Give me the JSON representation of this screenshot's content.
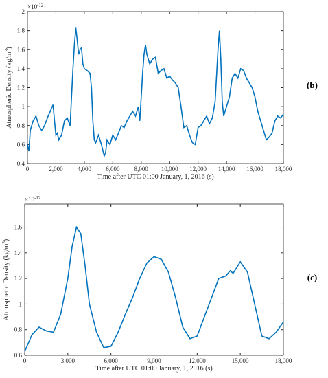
{
  "chart_data": [
    {
      "type": "line",
      "panel": "(b)",
      "xlabel": "Time after UTC 01:00 January, 1, 2016 (s)",
      "ylabel": "Atmospheric Density (kg/m",
      "ylabel_exponent": "3",
      "ylabel_close": ")",
      "multiplier": "×10",
      "multiplier_exponent": "-12",
      "xlim": [
        0,
        18000
      ],
      "ylim": [
        0.4,
        2
      ],
      "xticks": [
        0,
        {
          "value": 2000,
          "label": "2,000"
        },
        {
          "value": 4000,
          "label": "4,000"
        },
        {
          "value": 6000,
          "label": "6,000"
        },
        {
          "value": 8000,
          "label": "8,000"
        },
        {
          "value": 10000,
          "label": "10,000"
        },
        {
          "value": 12000,
          "label": "12,000"
        },
        {
          "value": 14000,
          "label": "14,000"
        },
        {
          "value": 16000,
          "label": "16,000"
        },
        {
          "value": 18000,
          "label": "18,000"
        }
      ],
      "yticks": [
        0.4,
        0.6,
        0.8,
        1,
        1.2,
        1.4,
        1.6,
        1.8,
        2
      ],
      "series": [
        {
          "color": "#0072bd",
          "x": [
            0,
            100,
            200,
            400,
            600,
            800,
            1000,
            1200,
            1400,
            1600,
            1800,
            1900,
            2000,
            2100,
            2200,
            2400,
            2600,
            2800,
            3000,
            3100,
            3200,
            3300,
            3400,
            3500,
            3600,
            3700,
            3800,
            3900,
            4000,
            4200,
            4400,
            4500,
            4600,
            4700,
            4800,
            5000,
            5200,
            5400,
            5500,
            5600,
            5800,
            6000,
            6200,
            6400,
            6600,
            6800,
            7000,
            7200,
            7400,
            7600,
            7800,
            7900,
            8000,
            8100,
            8200,
            8300,
            8400,
            8600,
            8800,
            9000,
            9200,
            9400,
            9600,
            9800,
            10000,
            10200,
            10400,
            10600,
            10800,
            11000,
            11200,
            11400,
            11600,
            11800,
            12000,
            12200,
            12400,
            12600,
            12800,
            13000,
            13200,
            13400,
            13500,
            13600,
            13700,
            13800,
            14000,
            14200,
            14400,
            14600,
            14800,
            15000,
            15200,
            15400,
            15600,
            15800,
            16000,
            16200,
            16400,
            16600,
            16800,
            17000,
            17200,
            17400,
            17600,
            17800,
            18000
          ],
          "values": [
            0.6,
            0.53,
            0.75,
            0.85,
            0.9,
            0.8,
            0.75,
            0.8,
            0.88,
            0.95,
            1.02,
            0.85,
            0.7,
            0.72,
            0.65,
            0.7,
            0.85,
            0.88,
            0.8,
            1.1,
            1.4,
            1.65,
            1.83,
            1.7,
            1.55,
            1.6,
            1.62,
            1.45,
            1.4,
            1.38,
            1.35,
            1.2,
            0.85,
            0.65,
            0.62,
            0.7,
            0.6,
            0.48,
            0.52,
            0.65,
            0.6,
            0.7,
            0.65,
            0.72,
            0.8,
            0.78,
            0.85,
            0.9,
            0.95,
            0.9,
            1.0,
            0.85,
            1.1,
            1.35,
            1.55,
            1.65,
            1.55,
            1.45,
            1.5,
            1.52,
            1.35,
            1.38,
            1.4,
            1.3,
            1.32,
            1.28,
            1.25,
            1.2,
            1.0,
            0.78,
            0.8,
            0.7,
            0.62,
            0.6,
            0.78,
            0.8,
            0.85,
            0.9,
            0.82,
            0.88,
            1.05,
            1.6,
            1.8,
            1.5,
            1.05,
            0.9,
            1.0,
            1.1,
            1.3,
            1.35,
            1.3,
            1.4,
            1.38,
            1.3,
            1.25,
            1.2,
            1.1,
            0.95,
            0.85,
            0.75,
            0.65,
            0.68,
            0.72,
            0.85,
            0.9,
            0.88,
            0.92
          ]
        }
      ]
    },
    {
      "type": "line",
      "panel": "(c)",
      "xlabel": "Time after UTC 01:00 January, 1, 2016 (s)",
      "ylabel": "Atmospheric Density (kg/m",
      "ylabel_exponent": "3",
      "ylabel_close": ")",
      "multiplier": "×10",
      "multiplier_exponent": "-12",
      "xlim": [
        0,
        18000
      ],
      "ylim": [
        0.6,
        1.78
      ],
      "xticks": [
        0,
        {
          "value": 3000,
          "label": "3,000"
        },
        {
          "value": 6000,
          "label": "6,000"
        },
        {
          "value": 9000,
          "label": "9,000"
        },
        {
          "value": 12000,
          "label": "12,000"
        },
        {
          "value": 15000,
          "label": "15,000"
        },
        {
          "value": 18000,
          "label": "18,000"
        }
      ],
      "yticks": [
        0.6,
        0.8,
        1,
        1.2,
        1.4,
        1.6
      ],
      "series": [
        {
          "color": "#0072bd",
          "x": [
            0,
            500,
            1000,
            1500,
            2000,
            2500,
            3000,
            3300,
            3600,
            3900,
            4200,
            4500,
            5000,
            5500,
            6000,
            6500,
            7000,
            7500,
            8000,
            8500,
            9000,
            9500,
            10000,
            10500,
            11000,
            11500,
            12000,
            12500,
            13000,
            13500,
            14000,
            14300,
            14500,
            15000,
            15500,
            16000,
            16500,
            17000,
            17500,
            18000
          ],
          "values": [
            0.63,
            0.76,
            0.82,
            0.79,
            0.78,
            0.92,
            1.2,
            1.45,
            1.6,
            1.55,
            1.3,
            1.0,
            0.78,
            0.66,
            0.67,
            0.78,
            0.92,
            1.05,
            1.2,
            1.32,
            1.37,
            1.35,
            1.25,
            1.05,
            0.82,
            0.73,
            0.75,
            0.9,
            1.05,
            1.2,
            1.22,
            1.26,
            1.24,
            1.33,
            1.25,
            1.0,
            0.75,
            0.73,
            0.78,
            0.86
          ]
        }
      ]
    }
  ]
}
